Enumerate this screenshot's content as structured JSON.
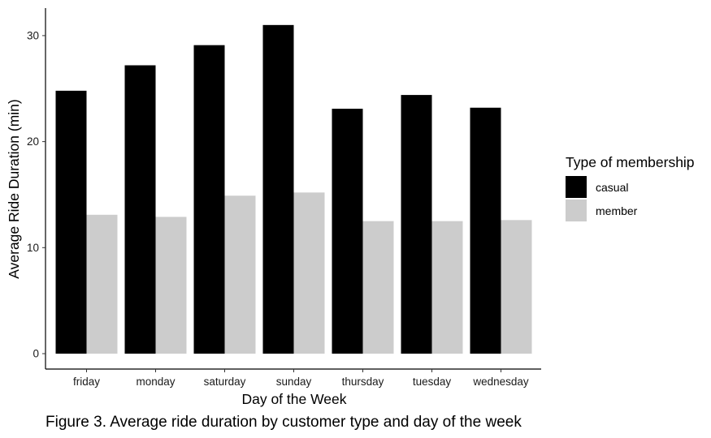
{
  "chart_data": {
    "type": "bar",
    "categories": [
      "friday",
      "monday",
      "saturday",
      "sunday",
      "thursday",
      "tuesday",
      "wednesday"
    ],
    "series": [
      {
        "name": "casual",
        "values": [
          24.8,
          27.2,
          29.1,
          31.0,
          23.1,
          24.4,
          23.2
        ]
      },
      {
        "name": "member",
        "values": [
          13.1,
          12.9,
          14.9,
          15.2,
          12.5,
          12.5,
          12.6
        ]
      }
    ],
    "xlabel": "Day of the Week",
    "ylabel": "Average Ride Duration (min)",
    "yticks": [
      0,
      10,
      20,
      30
    ],
    "ylim": [
      0,
      31
    ],
    "legend_title": "Type of membership",
    "legend_position": "right",
    "grid": false,
    "colors": {
      "casual": "#000000",
      "member": "#cccccc"
    }
  },
  "caption": "Figure 3. Average ride duration by customer type and day of the week"
}
